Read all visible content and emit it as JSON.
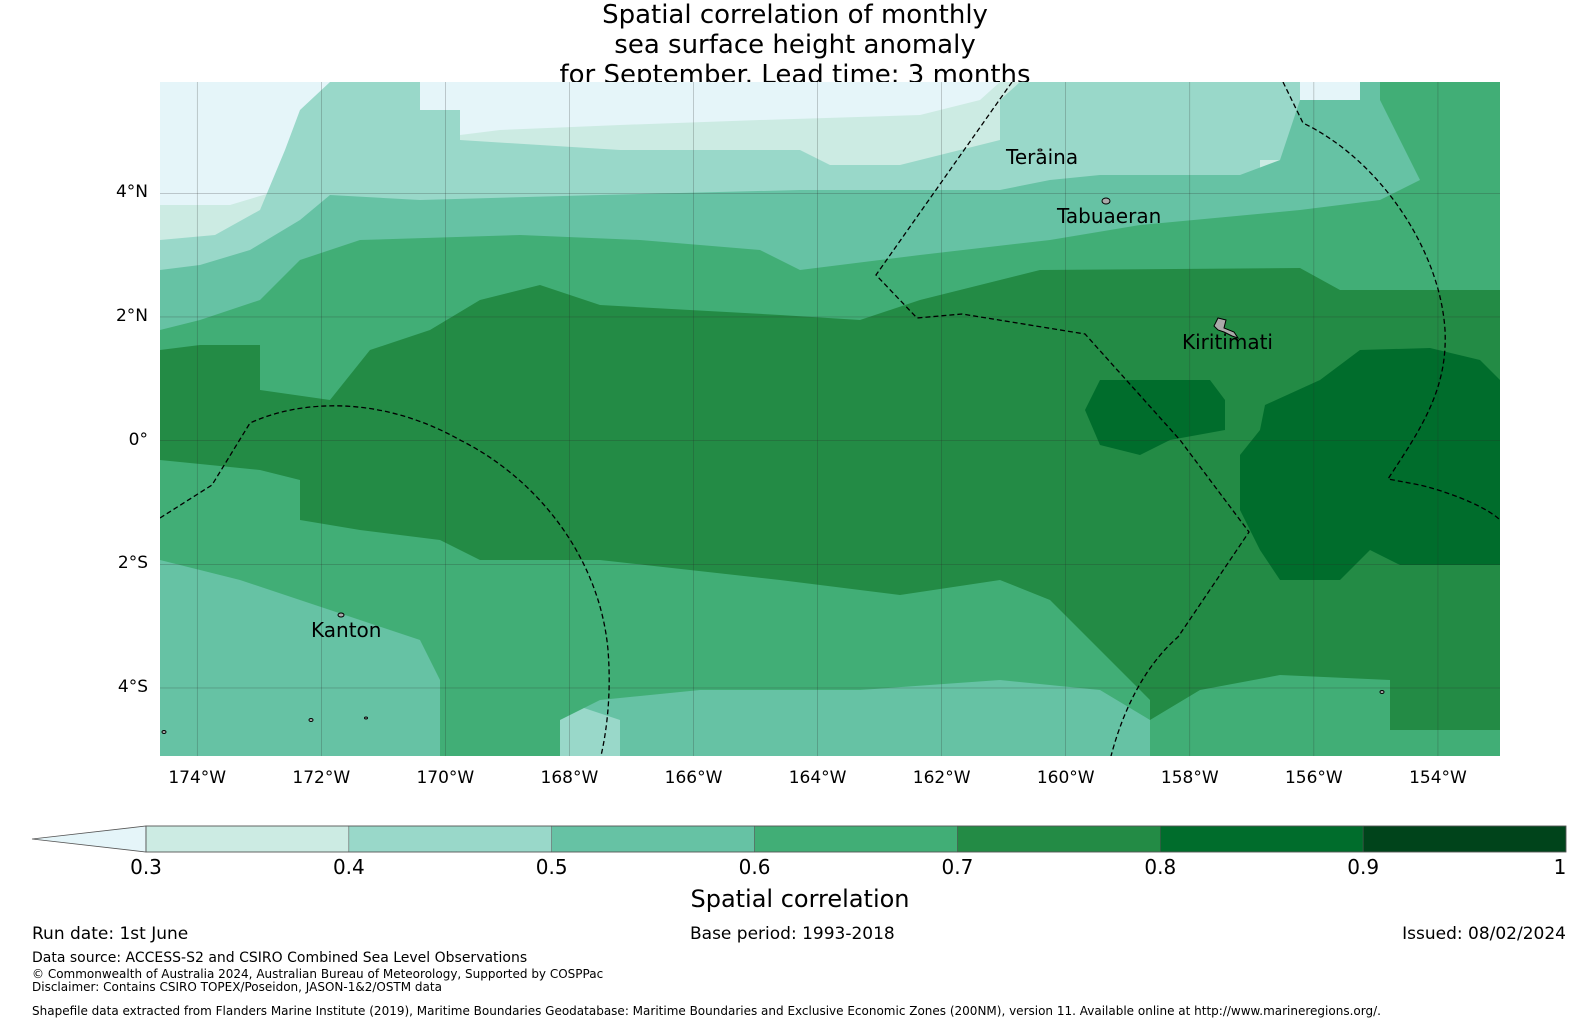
{
  "title": {
    "line1": "Spatial correlation of monthly",
    "line2": "sea surface height anomaly",
    "line3": "for September. Lead time: 3 months"
  },
  "map": {
    "lat_range": [
      -5.1,
      5.8
    ],
    "lon_range": [
      -174.6,
      -153.0
    ],
    "lat_ticks": [
      "4°N",
      "2°N",
      "0°",
      "2°S",
      "4°S"
    ],
    "lon_ticks": [
      "174°W",
      "172°W",
      "170°W",
      "168°W",
      "166°W",
      "164°W",
      "162°W",
      "160°W",
      "158°W",
      "156°W",
      "154°W"
    ],
    "islands": [
      {
        "name": "Teraina"
      },
      {
        "name": "Tabuaeran"
      },
      {
        "name": "Kiritimati"
      },
      {
        "name": "Kanton"
      }
    ],
    "eez_boundary": "dashed",
    "grid": true
  },
  "colorbar": {
    "label": "Spatial correlation",
    "ticks": [
      "0.3",
      "0.4",
      "0.5",
      "0.6",
      "0.7",
      "0.8",
      "0.9",
      "1"
    ],
    "bins": [
      {
        "from": 0.3,
        "to": 0.4,
        "color": "#ccebe3"
      },
      {
        "from": 0.4,
        "to": 0.5,
        "color": "#99d8c9"
      },
      {
        "from": 0.5,
        "to": 0.6,
        "color": "#66c2a4"
      },
      {
        "from": 0.6,
        "to": 0.7,
        "color": "#41ae76"
      },
      {
        "from": 0.7,
        "to": 0.8,
        "color": "#238b45"
      },
      {
        "from": 0.8,
        "to": 0.9,
        "color": "#006d2c"
      },
      {
        "from": 0.9,
        "to": 1.0,
        "color": "#00441b"
      }
    ],
    "under_color": "#e5f5f9",
    "extend": "min"
  },
  "footer": {
    "run_date": "Run date: 1st June",
    "base_period": "Base period: 1993-2018",
    "issued": "Issued: 08/02/2024",
    "data_source": "Data source: ACCESS-S2 and CSIRO Combined Sea Level Observations",
    "copyright": "© Commonwealth of Australia 2024, Australian Bureau of Meteorology, Supported by COSPPac",
    "disclaimer": "Disclaimer: Contains CSIRO TOPEX/Poseidon, JASON-1&2/OSTM data",
    "shapefile": "Shapefile data extracted from Flanders Marine Institute (2019), Maritime Boundaries Geodatabase: Maritime Boundaries and Exclusive Economic Zones (200NM), version 11. Available online at http://www.marineregions.org/."
  }
}
